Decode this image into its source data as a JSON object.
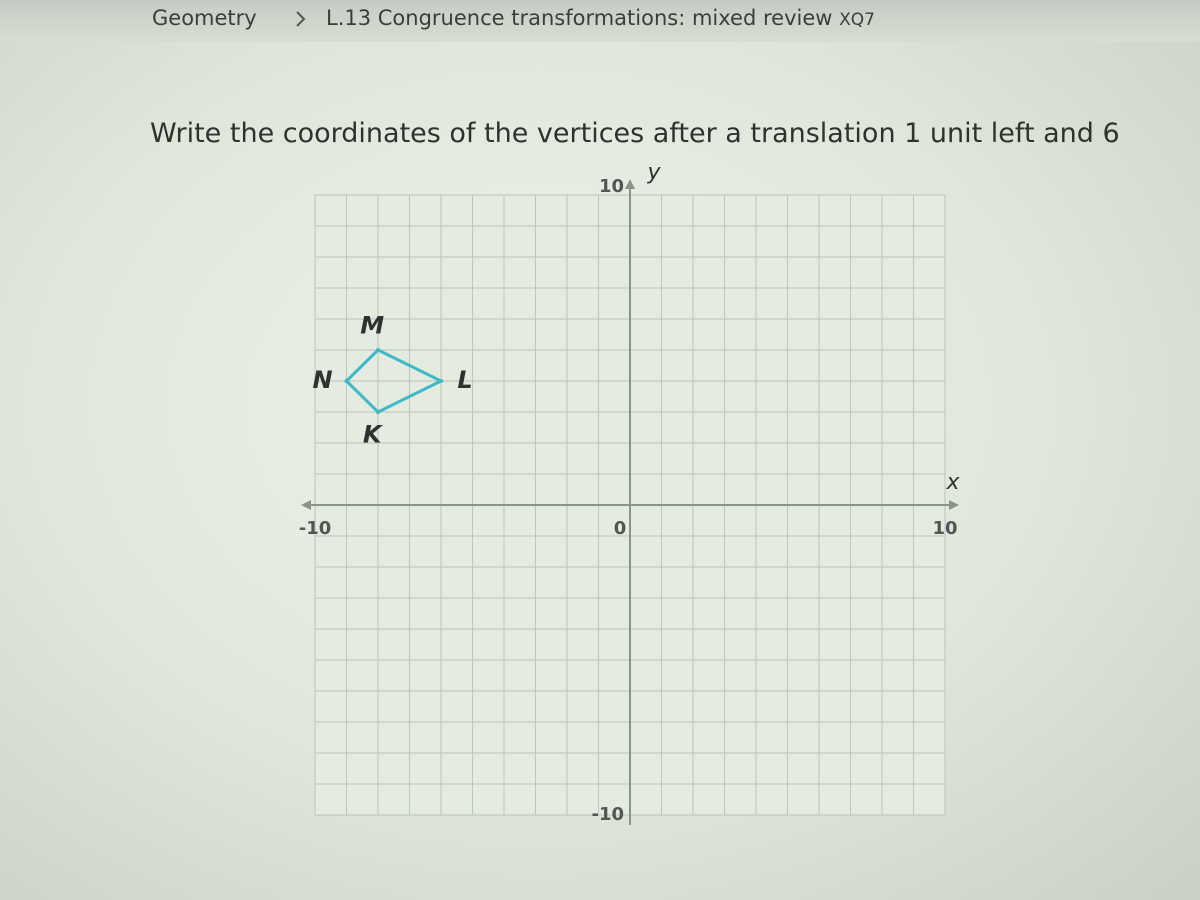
{
  "breadcrumb": {
    "subject": "Geometry",
    "skill": "L.13 Congruence transformations: mixed review",
    "code": "XQ7"
  },
  "question": "Write the coordinates of the vertices after a translation 1 unit left and 6",
  "graph": {
    "xlim": [
      -10,
      10
    ],
    "ylim": [
      -10,
      10
    ],
    "xticks": [
      -10,
      0,
      10
    ],
    "yticks": [
      10,
      -10
    ],
    "x_label": "x",
    "y_label": "y",
    "grid": true,
    "color": "#3fb8c8",
    "vertices": [
      {
        "label": "K",
        "x": -8,
        "y": 3
      },
      {
        "label": "L",
        "x": -6,
        "y": 4
      },
      {
        "label": "M",
        "x": -8,
        "y": 5
      },
      {
        "label": "N",
        "x": -9,
        "y": 4
      }
    ]
  }
}
